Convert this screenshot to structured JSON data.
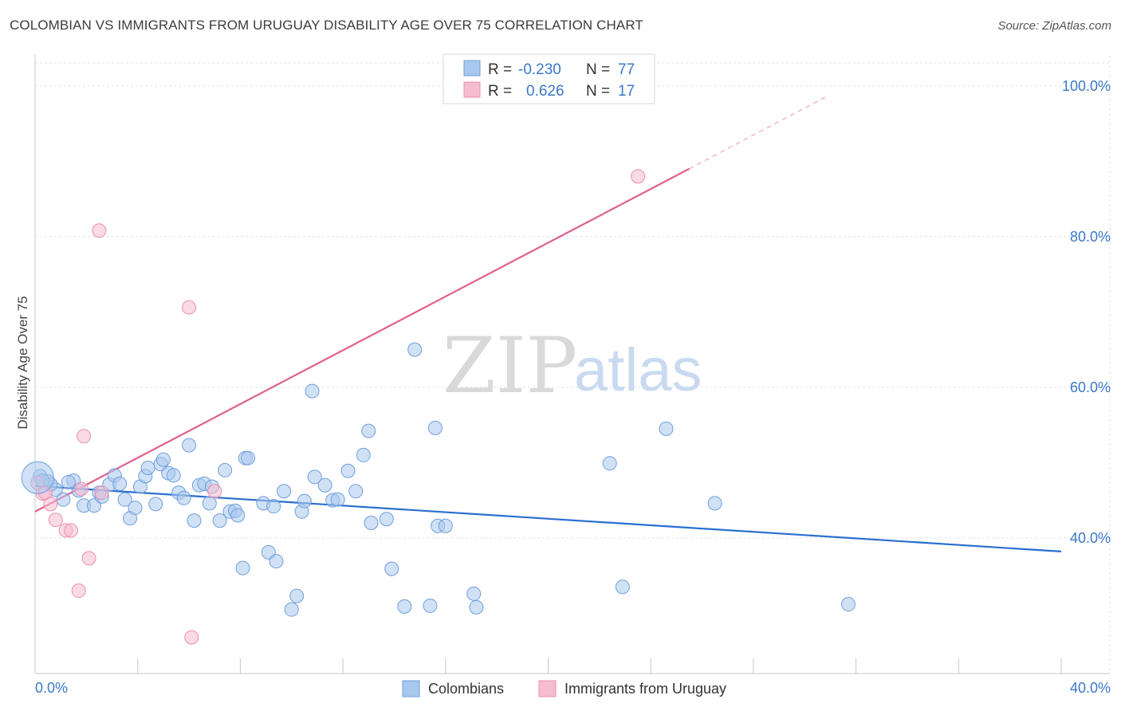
{
  "title": "COLOMBIAN VS IMMIGRANTS FROM URUGUAY DISABILITY AGE OVER 75 CORRELATION CHART",
  "source": "Source: ZipAtlas.com",
  "watermark": {
    "zip": "ZIP",
    "atlas": "atlas"
  },
  "colors": {
    "blue_fill": "#a9c8ef",
    "blue_stroke": "#6f9fdc",
    "blue_line": "#2a6fcf",
    "pink_fill": "#f6bcd0",
    "pink_stroke": "#ec8fb0",
    "pink_line": "#e0608e",
    "grid": "#dde1ea",
    "tick_text": "#3a78c9"
  },
  "legend": {
    "rows": [
      {
        "r_label": "R =",
        "r_value": "-0.230",
        "n_label": "N =",
        "n_value": "77",
        "series": "blue"
      },
      {
        "r_label": "R =",
        "r_value": "0.626",
        "n_label": "N =",
        "n_value": "17",
        "series": "pink"
      }
    ]
  },
  "bottom_legend": [
    "Colombians",
    "Immigrants from Uruguay"
  ],
  "chart_data": {
    "type": "scatter",
    "title": "COLOMBIAN VS IMMIGRANTS FROM URUGUAY DISABILITY AGE OVER 75 CORRELATION CHART",
    "xlabel": "",
    "ylabel": "Disability Age Over 75",
    "xlim": [
      0,
      40
    ],
    "ylim": [
      22,
      104
    ],
    "x_tick_labels": [
      {
        "value": 0,
        "label": "0.0%"
      },
      {
        "value": 40,
        "label": "40.0%"
      }
    ],
    "y_tick_labels": [
      {
        "value": 100,
        "label": "100.0%"
      },
      {
        "value": 80,
        "label": "80.0%"
      },
      {
        "value": 60,
        "label": "60.0%"
      },
      {
        "value": 40,
        "label": "40.0%"
      }
    ],
    "grid": true,
    "legend_position": "top-center",
    "series": [
      {
        "name": "Colombians",
        "color": "blue",
        "trend": {
          "x": [
            0,
            40
          ],
          "y": [
            46.9,
            38.2
          ]
        },
        "points": [
          [
            0.2,
            48.2
          ],
          [
            0.5,
            47.5
          ],
          [
            0.8,
            46.4
          ],
          [
            1.1,
            45.1
          ],
          [
            1.5,
            47.6
          ],
          [
            1.7,
            46.3
          ],
          [
            1.9,
            44.3
          ],
          [
            2.3,
            44.3
          ],
          [
            2.5,
            46.0
          ],
          [
            2.6,
            45.5
          ],
          [
            2.9,
            47.1
          ],
          [
            3.1,
            48.3
          ],
          [
            3.3,
            47.2
          ],
          [
            3.5,
            45.1
          ],
          [
            3.7,
            42.6
          ],
          [
            3.9,
            44.0
          ],
          [
            4.1,
            46.8
          ],
          [
            4.3,
            48.2
          ],
          [
            4.4,
            49.3
          ],
          [
            4.7,
            44.5
          ],
          [
            4.9,
            49.8
          ],
          [
            5.0,
            50.4
          ],
          [
            5.2,
            48.6
          ],
          [
            5.4,
            48.3
          ],
          [
            5.6,
            46.0
          ],
          [
            5.8,
            45.3
          ],
          [
            6.0,
            52.3
          ],
          [
            6.2,
            42.3
          ],
          [
            6.4,
            47.0
          ],
          [
            6.6,
            47.2
          ],
          [
            6.8,
            44.6
          ],
          [
            6.9,
            46.8
          ],
          [
            7.2,
            42.3
          ],
          [
            7.4,
            49.0
          ],
          [
            7.6,
            43.5
          ],
          [
            7.8,
            43.6
          ],
          [
            7.9,
            43.0
          ],
          [
            8.2,
            50.6
          ],
          [
            8.3,
            50.6
          ],
          [
            8.1,
            36.0
          ],
          [
            8.9,
            44.6
          ],
          [
            9.1,
            38.1
          ],
          [
            9.3,
            44.2
          ],
          [
            9.4,
            36.9
          ],
          [
            9.7,
            46.2
          ],
          [
            10.0,
            30.5
          ],
          [
            10.2,
            32.3
          ],
          [
            10.4,
            43.5
          ],
          [
            10.5,
            44.9
          ],
          [
            10.8,
            59.5
          ],
          [
            10.9,
            48.1
          ],
          [
            11.3,
            47.0
          ],
          [
            11.6,
            45.0
          ],
          [
            11.8,
            45.1
          ],
          [
            12.2,
            48.9
          ],
          [
            12.5,
            46.2
          ],
          [
            12.8,
            51.0
          ],
          [
            13.0,
            54.2
          ],
          [
            13.1,
            42.0
          ],
          [
            13.7,
            42.5
          ],
          [
            13.9,
            35.9
          ],
          [
            14.4,
            30.9
          ],
          [
            14.8,
            65.0
          ],
          [
            15.4,
            31.0
          ],
          [
            15.6,
            54.6
          ],
          [
            15.7,
            41.6
          ],
          [
            16.0,
            41.6
          ],
          [
            17.1,
            32.6
          ],
          [
            17.2,
            30.8
          ],
          [
            22.4,
            49.9
          ],
          [
            22.9,
            33.5
          ],
          [
            24.6,
            54.5
          ],
          [
            26.5,
            44.6
          ],
          [
            31.7,
            31.2
          ],
          [
            0.6,
            47.1
          ],
          [
            1.3,
            47.4
          ],
          [
            0.3,
            47.6
          ]
        ]
      },
      {
        "name": "Immigrants from Uruguay",
        "color": "pink",
        "trend": {
          "x": [
            0,
            25.5
          ],
          "y": [
            43.5,
            89.0
          ]
        },
        "trend_dashed": {
          "x": [
            25.5,
            30.8
          ],
          "y": [
            89.0,
            98.5
          ]
        },
        "points": [
          [
            0.1,
            47.3
          ],
          [
            0.3,
            45.9
          ],
          [
            0.4,
            46.0
          ],
          [
            0.6,
            44.5
          ],
          [
            0.8,
            42.4
          ],
          [
            1.2,
            41.0
          ],
          [
            1.4,
            41.0
          ],
          [
            1.7,
            33.0
          ],
          [
            1.8,
            46.5
          ],
          [
            1.9,
            53.5
          ],
          [
            2.1,
            37.3
          ],
          [
            2.6,
            46.0
          ],
          [
            2.5,
            80.8
          ],
          [
            6.0,
            70.6
          ],
          [
            6.1,
            26.8
          ],
          [
            7.0,
            46.2
          ],
          [
            23.5,
            88.0
          ]
        ]
      }
    ]
  }
}
